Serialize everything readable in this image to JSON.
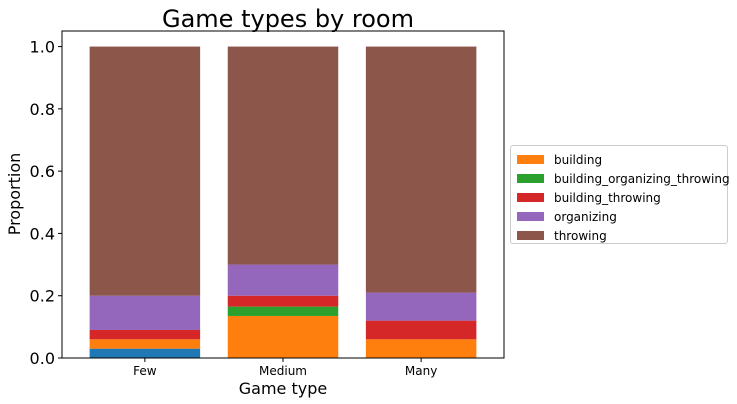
{
  "chart_data": {
    "type": "bar",
    "stacked": true,
    "title": "Game types by room",
    "xlabel": "Game type",
    "ylabel": "Proportion",
    "ylim": [
      0,
      1.05
    ],
    "yticks": [
      "0.0",
      "0.2",
      "0.4",
      "0.6",
      "0.8",
      "1.0"
    ],
    "grid": false,
    "legend_position": "right",
    "categories": [
      "Few",
      "Medium",
      "Many"
    ],
    "series": [
      {
        "color": "#1f77b4",
        "values": [
          0.03,
          0.0,
          0.0
        ]
      },
      {
        "name": "building",
        "color": "#ff7f0e",
        "values": [
          0.03,
          0.135,
          0.06
        ]
      },
      {
        "name": "building_organizing_throwing",
        "color": "#2ca02c",
        "values": [
          0.0,
          0.03,
          0.0
        ]
      },
      {
        "name": "building_throwing",
        "color": "#d62728",
        "values": [
          0.03,
          0.035,
          0.06
        ]
      },
      {
        "name": "organizing",
        "color": "#9467bd",
        "values": [
          0.11,
          0.1,
          0.09
        ]
      },
      {
        "name": "throwing",
        "color": "#8c564b",
        "values": [
          0.8,
          0.7,
          0.79
        ]
      }
    ]
  }
}
